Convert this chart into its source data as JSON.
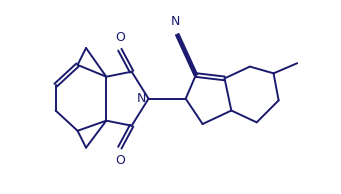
{
  "bg_color": "#ffffff",
  "line_color": "#1a1a6e",
  "line_width": 1.4,
  "font_size": 8.5,
  "fig_width": 3.41,
  "fig_height": 1.94,
  "xlim": [
    0,
    10
  ],
  "ylim": [
    0,
    5.7
  ]
}
